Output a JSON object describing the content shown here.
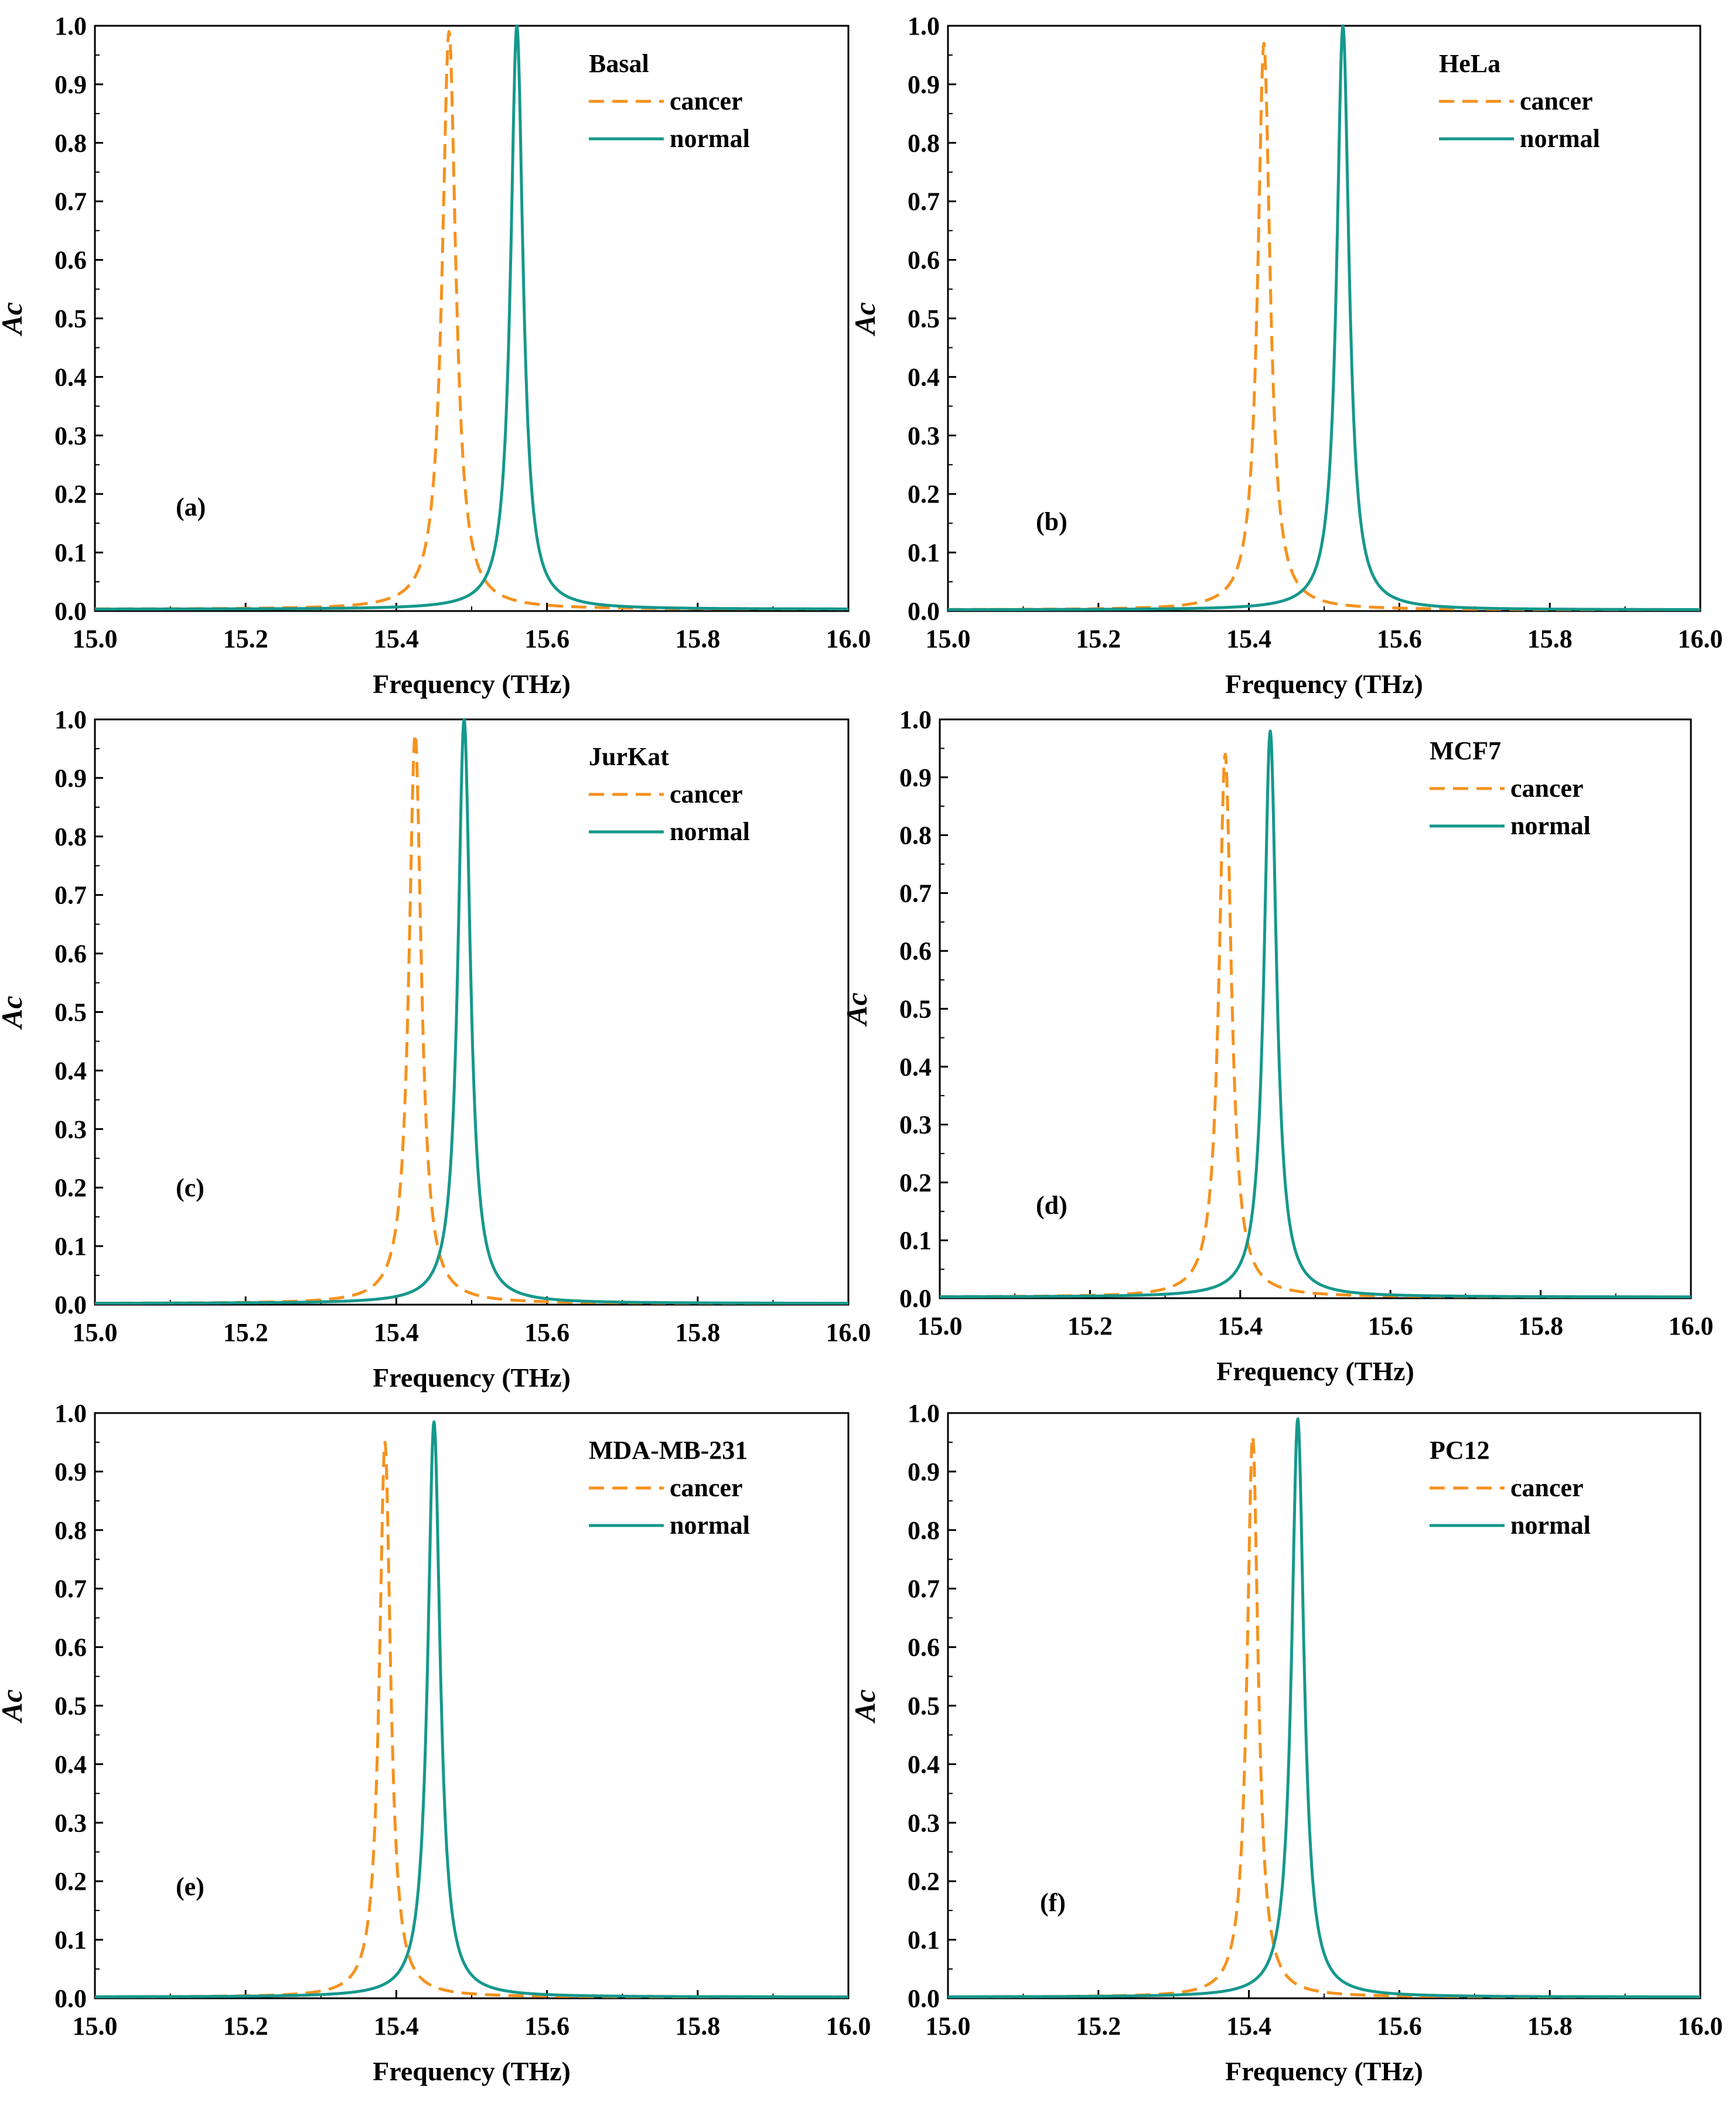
{
  "colors": {
    "cancer": "#F5921E",
    "normal": "#16988C",
    "axis": "#000000"
  },
  "chart_data": [
    {
      "type": "line",
      "panel": "(a)",
      "title": "Basal",
      "xlabel": "Frequency (THz)",
      "ylabel": "Ac",
      "xlim": [
        15.0,
        16.0
      ],
      "ylim": [
        0.0,
        1.0
      ],
      "xticks": [
        "15.0",
        "15.2",
        "15.4",
        "15.6",
        "15.8",
        "16.0"
      ],
      "yticks": [
        "0.0",
        "0.1",
        "0.2",
        "0.3",
        "0.4",
        "0.5",
        "0.6",
        "0.7",
        "0.8",
        "0.9",
        "1.0"
      ],
      "series": [
        {
          "name": "cancer",
          "style": "dashed",
          "peak_freq": 15.47,
          "peak_value": 0.99,
          "width": 0.011,
          "baseline": 0.003
        },
        {
          "name": "normal",
          "style": "solid",
          "peak_freq": 15.56,
          "peak_value": 1.0,
          "width": 0.01,
          "baseline": 0.003
        }
      ]
    },
    {
      "type": "line",
      "panel": "(b)",
      "title": "HeLa",
      "xlabel": "Frequency (THz)",
      "ylabel": "Ac",
      "xlim": [
        15.0,
        16.0
      ],
      "ylim": [
        0.0,
        1.0
      ],
      "xticks": [
        "15.0",
        "15.2",
        "15.4",
        "15.6",
        "15.8",
        "16.0"
      ],
      "yticks": [
        "0.0",
        "0.1",
        "0.2",
        "0.3",
        "0.4",
        "0.5",
        "0.6",
        "0.7",
        "0.8",
        "0.9",
        "1.0"
      ],
      "series": [
        {
          "name": "cancer",
          "style": "dashed",
          "peak_freq": 15.42,
          "peak_value": 0.97,
          "width": 0.01,
          "baseline": 0.002
        },
        {
          "name": "normal",
          "style": "solid",
          "peak_freq": 15.525,
          "peak_value": 1.0,
          "width": 0.01,
          "baseline": 0.002
        }
      ]
    },
    {
      "type": "line",
      "panel": "(c)",
      "title": "JurKat",
      "xlabel": "Frequency (THz)",
      "ylabel": "Ac",
      "xlim": [
        15.0,
        16.0
      ],
      "ylim": [
        0.0,
        1.0
      ],
      "xticks": [
        "15.0",
        "15.2",
        "15.4",
        "15.6",
        "15.8",
        "16.0"
      ],
      "yticks": [
        "0.0",
        "0.1",
        "0.2",
        "0.3",
        "0.4",
        "0.5",
        "0.6",
        "0.7",
        "0.8",
        "0.9",
        "1.0"
      ],
      "series": [
        {
          "name": "cancer",
          "style": "dashed",
          "peak_freq": 15.425,
          "peak_value": 0.975,
          "width": 0.01,
          "baseline": 0.002
        },
        {
          "name": "normal",
          "style": "solid",
          "peak_freq": 15.49,
          "peak_value": 1.0,
          "width": 0.01,
          "baseline": 0.002
        }
      ]
    },
    {
      "type": "line",
      "panel": "(d)",
      "title": "MCF7",
      "xlabel": "Frequency (THz)",
      "ylabel": "Ac",
      "xlim": [
        15.0,
        16.0
      ],
      "ylim": [
        0.0,
        1.0
      ],
      "xticks": [
        "15.0",
        "15.2",
        "15.4",
        "15.6",
        "15.8",
        "16.0"
      ],
      "yticks": [
        "0.0",
        "0.1",
        "0.2",
        "0.3",
        "0.4",
        "0.5",
        "0.6",
        "0.7",
        "0.8",
        "0.9",
        "1.0"
      ],
      "series": [
        {
          "name": "cancer",
          "style": "dashed",
          "peak_freq": 15.38,
          "peak_value": 0.94,
          "width": 0.01,
          "baseline": 0.002
        },
        {
          "name": "normal",
          "style": "solid",
          "peak_freq": 15.44,
          "peak_value": 0.98,
          "width": 0.01,
          "baseline": 0.002
        }
      ]
    },
    {
      "type": "line",
      "panel": "(e)",
      "title": "MDA-MB-231",
      "xlabel": "Frequency (THz)",
      "ylabel": "Ac",
      "xlim": [
        15.0,
        16.0
      ],
      "ylim": [
        0.0,
        1.0
      ],
      "xticks": [
        "15.0",
        "15.2",
        "15.4",
        "15.6",
        "15.8",
        "16.0"
      ],
      "yticks": [
        "0.0",
        "0.1",
        "0.2",
        "0.3",
        "0.4",
        "0.5",
        "0.6",
        "0.7",
        "0.8",
        "0.9",
        "1.0"
      ],
      "series": [
        {
          "name": "cancer",
          "style": "dashed",
          "peak_freq": 15.385,
          "peak_value": 0.95,
          "width": 0.009,
          "baseline": 0.002
        },
        {
          "name": "normal",
          "style": "solid",
          "peak_freq": 15.45,
          "peak_value": 0.985,
          "width": 0.01,
          "baseline": 0.002
        }
      ]
    },
    {
      "type": "line",
      "panel": "(f)",
      "title": "PC12",
      "xlabel": "Frequency (THz)",
      "ylabel": "Ac",
      "xlim": [
        15.0,
        16.0
      ],
      "ylim": [
        0.0,
        1.0
      ],
      "xticks": [
        "15.0",
        "15.2",
        "15.4",
        "15.6",
        "15.8",
        "16.0"
      ],
      "yticks": [
        "0.0",
        "0.1",
        "0.2",
        "0.3",
        "0.4",
        "0.5",
        "0.6",
        "0.7",
        "0.8",
        "0.9",
        "1.0"
      ],
      "series": [
        {
          "name": "cancer",
          "style": "dashed",
          "peak_freq": 15.405,
          "peak_value": 0.96,
          "width": 0.009,
          "baseline": 0.002
        },
        {
          "name": "normal",
          "style": "solid",
          "peak_freq": 15.465,
          "peak_value": 0.99,
          "width": 0.01,
          "baseline": 0.002
        }
      ]
    }
  ]
}
